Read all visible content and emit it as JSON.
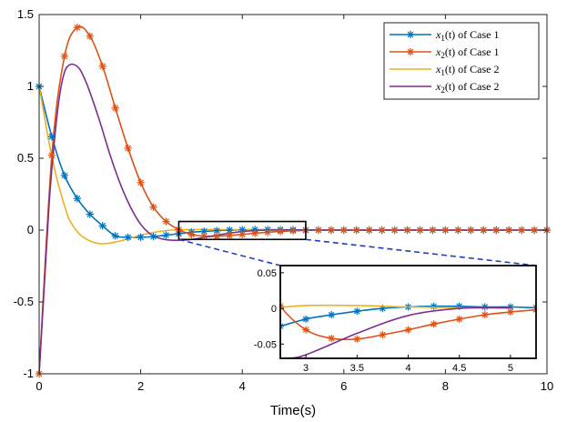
{
  "chart_data": {
    "type": "line",
    "title": "",
    "xlabel": "Time(s)",
    "ylabel": "",
    "xlim": [
      0,
      10
    ],
    "ylim": [
      -1,
      1.5
    ],
    "xticks": [
      "0",
      "2",
      "4",
      "6",
      "8",
      "10"
    ],
    "yticks": [
      "1.5",
      "1",
      "0.5",
      "0",
      "-0.5",
      "-1"
    ],
    "grid": false,
    "legend_position": "top-right",
    "series": [
      {
        "name": "x1(t) of Case 1",
        "legend_var": "x",
        "legend_sub": "1",
        "legend_rest": "(t) of Case 1",
        "color": "#0072BD",
        "marker": "star",
        "x": [
          0,
          0.25,
          0.5,
          0.75,
          1.0,
          1.25,
          1.5,
          1.75,
          2.0,
          2.25,
          2.5,
          2.75,
          3.0,
          3.25,
          3.5,
          3.75,
          4.0,
          4.25,
          4.5,
          4.75,
          5.0,
          5.25,
          5.5,
          5.75,
          6.0,
          6.25,
          6.5,
          6.75,
          7.0,
          7.25,
          7.5,
          7.75,
          8.0,
          8.25,
          8.5,
          8.75,
          9.0,
          9.25,
          9.5,
          9.75,
          10.0
        ],
        "y": [
          1.0,
          0.65,
          0.38,
          0.22,
          0.11,
          0.03,
          -0.04,
          -0.05,
          -0.05,
          -0.045,
          -0.035,
          -0.025,
          -0.015,
          -0.009,
          -0.004,
          0.0,
          0.002,
          0.003,
          0.003,
          0.002,
          0.002,
          0.001,
          0.001,
          0.0,
          0.0,
          0.0,
          0.0,
          0.0,
          0.0,
          0.0,
          0.0,
          0.0,
          0.0,
          0.0,
          0.0,
          0.0,
          0.0,
          0.0,
          0.0,
          0.0,
          0.0
        ]
      },
      {
        "name": "x2(t) of Case 1",
        "legend_var": "x",
        "legend_sub": "2",
        "legend_rest": "(t) of Case 1",
        "color": "#D95319",
        "marker": "star",
        "x": [
          0,
          0.25,
          0.5,
          0.75,
          1.0,
          1.25,
          1.5,
          1.75,
          2.0,
          2.25,
          2.5,
          2.75,
          3.0,
          3.25,
          3.5,
          3.75,
          4.0,
          4.25,
          4.5,
          4.75,
          5.0,
          5.25,
          5.5,
          5.75,
          6.0,
          6.25,
          6.5,
          6.75,
          7.0,
          7.25,
          7.5,
          7.75,
          8.0,
          8.25,
          8.5,
          8.75,
          9.0,
          9.25,
          9.5,
          9.75,
          10.0
        ],
        "y": [
          -1.0,
          0.52,
          1.21,
          1.41,
          1.35,
          1.14,
          0.85,
          0.57,
          0.33,
          0.16,
          0.06,
          0.003,
          -0.03,
          -0.042,
          -0.043,
          -0.037,
          -0.03,
          -0.022,
          -0.015,
          -0.009,
          -0.005,
          -0.002,
          0.0,
          0.0,
          0.0,
          0.0,
          0.0,
          0.0,
          0.0,
          0.0,
          0.0,
          0.0,
          0.0,
          0.0,
          0.0,
          0.0,
          0.0,
          0.0,
          0.0,
          0.0,
          0.0
        ]
      },
      {
        "name": "x1(t) of Case 2",
        "legend_var": "x",
        "legend_sub": "1",
        "legend_rest": "(t) of Case 2",
        "color": "#EDB120",
        "marker": "none",
        "x": [
          0,
          0.1,
          0.2,
          0.3,
          0.4,
          0.5,
          0.6,
          0.8,
          1.0,
          1.2,
          1.4,
          1.6,
          1.8,
          2.0,
          2.2,
          2.4,
          2.6,
          2.8,
          3.0,
          3.5,
          4.0,
          4.5,
          5.0,
          6.0,
          7.0,
          8.0,
          9.0,
          10.0
        ],
        "y": [
          1.0,
          0.8,
          0.6,
          0.43,
          0.29,
          0.17,
          0.07,
          -0.03,
          -0.075,
          -0.095,
          -0.09,
          -0.075,
          -0.055,
          -0.035,
          -0.02,
          -0.008,
          0.0,
          0.002,
          0.004,
          0.004,
          0.002,
          0.001,
          0.0,
          0.0,
          0.0,
          0.0,
          0.0,
          0.0
        ]
      },
      {
        "name": "x2(t) of Case 2",
        "legend_var": "x",
        "legend_sub": "2",
        "legend_rest": "(t) of Case 2",
        "color": "#7E2F8E",
        "marker": "none",
        "x": [
          0,
          0.1,
          0.2,
          0.3,
          0.4,
          0.5,
          0.6,
          0.7,
          0.8,
          0.9,
          1.0,
          1.2,
          1.4,
          1.6,
          1.8,
          2.0,
          2.2,
          2.4,
          2.6,
          2.8,
          3.0,
          3.5,
          4.0,
          4.5,
          5.0,
          6.0,
          7.0,
          8.0,
          9.0,
          10.0
        ],
        "y": [
          -1.0,
          -0.4,
          0.2,
          0.62,
          0.93,
          1.1,
          1.15,
          1.15,
          1.12,
          1.05,
          0.96,
          0.75,
          0.52,
          0.32,
          0.16,
          0.04,
          -0.03,
          -0.06,
          -0.07,
          -0.07,
          -0.065,
          -0.035,
          -0.01,
          0.0,
          0.001,
          0.0,
          0.0,
          0.0,
          0.0,
          0.0
        ]
      }
    ],
    "zoom_region": {
      "xlim": [
        2.75,
        5.25
      ],
      "ylim": [
        -0.065,
        0.06
      ]
    },
    "inset": {
      "xlim": [
        2.75,
        5.25
      ],
      "ylim": [
        -0.07,
        0.06
      ],
      "xticks": [
        3,
        3.5,
        4,
        4.5,
        5
      ],
      "xtick_labels": [
        "3",
        "3.5",
        "4",
        "4.5",
        "5"
      ],
      "yticks": [
        0.05,
        0,
        -0.05
      ],
      "ytick_labels": [
        "0.05",
        "0",
        "-0.05"
      ]
    }
  }
}
